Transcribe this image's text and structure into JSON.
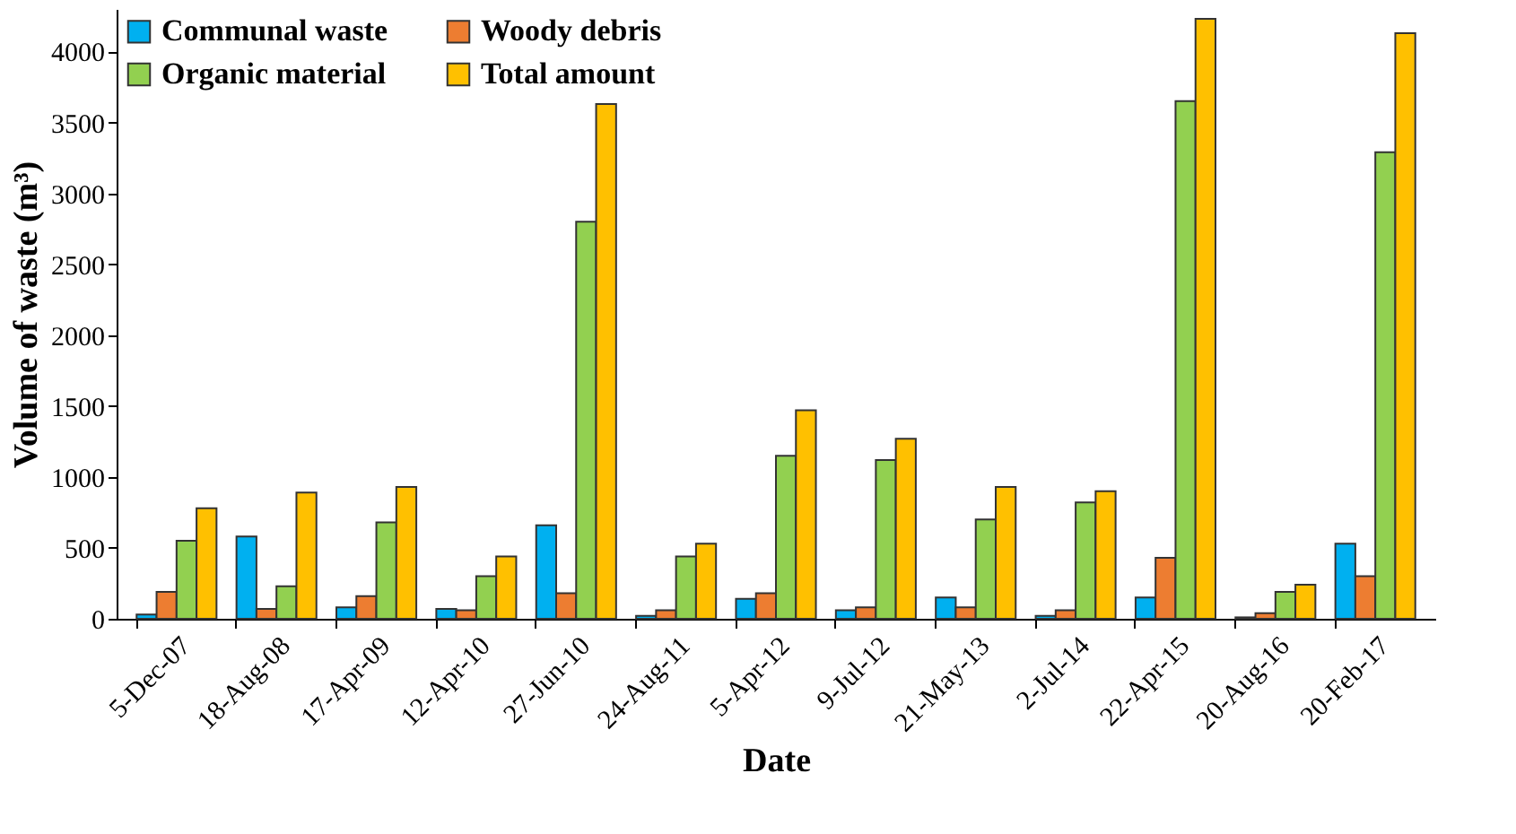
{
  "chart_data": {
    "type": "bar",
    "xlabel": "Date",
    "ylabel": "Volume of waste (m³)",
    "categories": [
      "5-Dec-07",
      "18-Aug-08",
      "17-Apr-09",
      "12-Apr-10",
      "27-Jun-10",
      "24-Aug-11",
      "5-Apr-12",
      "9-Jul-12",
      "21-May-13",
      "2-Jul-14",
      "22-Apr-15",
      "20-Aug-16",
      "20-Feb-17"
    ],
    "series": [
      {
        "name": "Communal waste",
        "color": "#00b0f0",
        "values": [
          30,
          580,
          80,
          70,
          660,
          20,
          140,
          60,
          150,
          20,
          150,
          10,
          530
        ]
      },
      {
        "name": "Woody debris",
        "color": "#ed7d31",
        "values": [
          190,
          70,
          160,
          60,
          180,
          60,
          180,
          80,
          80,
          60,
          430,
          40,
          300
        ]
      },
      {
        "name": "Organic material",
        "color": "#92d050",
        "values": [
          550,
          230,
          680,
          300,
          2800,
          440,
          1150,
          1120,
          700,
          820,
          3650,
          190,
          3290
        ]
      },
      {
        "name": "Total amount",
        "color": "#ffc000",
        "values": [
          780,
          890,
          930,
          440,
          3630,
          530,
          1470,
          1270,
          930,
          900,
          4230,
          240,
          4130
        ]
      }
    ],
    "ylim": [
      0,
      4300
    ],
    "yticks": [
      0,
      500,
      1000,
      1500,
      2000,
      2500,
      3000,
      3500,
      4000
    ],
    "grid": false,
    "legend": "top left"
  }
}
